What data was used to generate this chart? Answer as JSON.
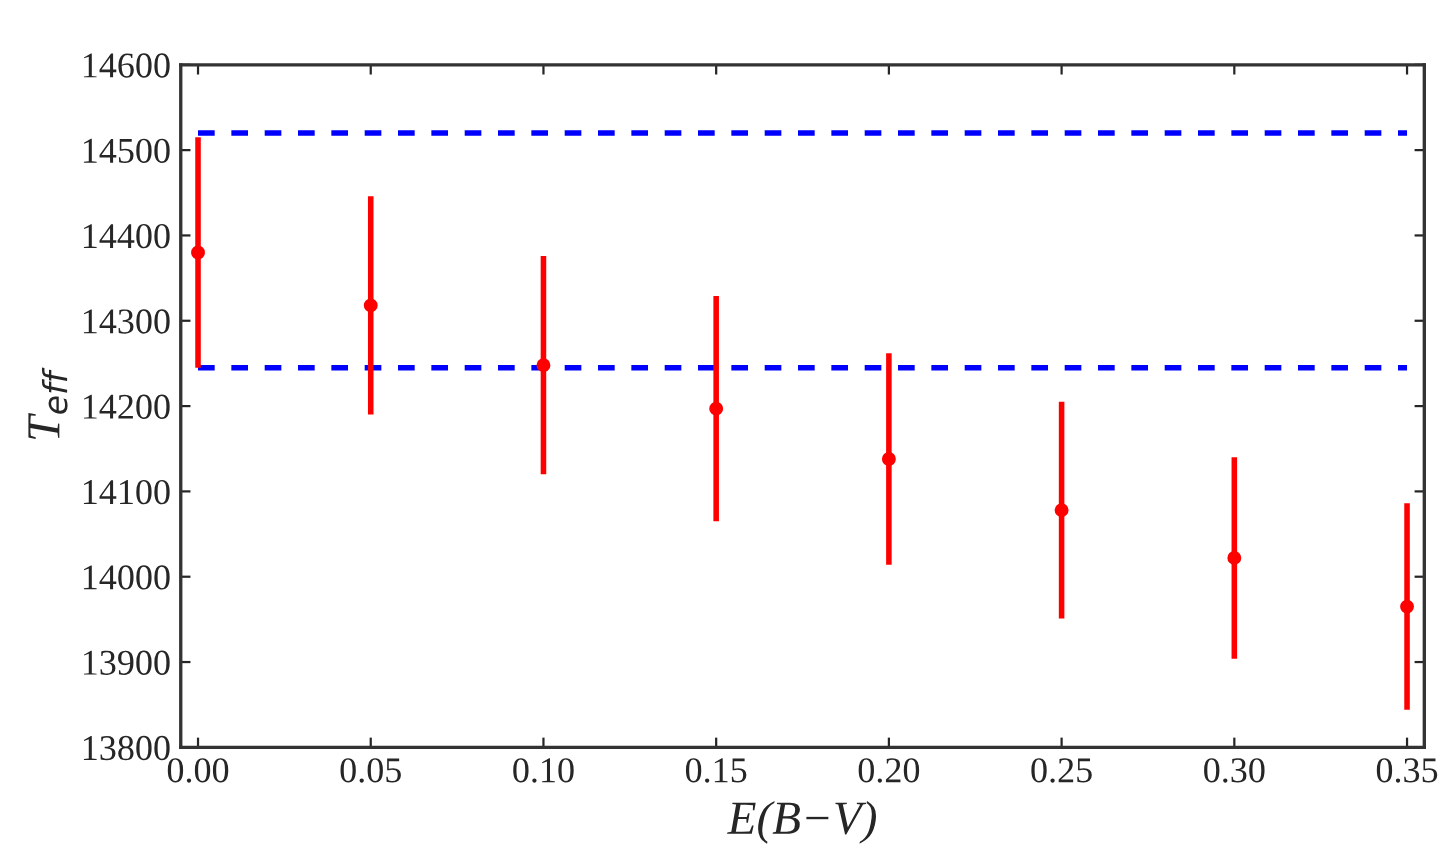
{
  "chart_data": {
    "type": "scatter",
    "xlabel": "E(B−V)",
    "ylabel": "T$_{eff}$",
    "x": [
      0.0,
      0.05,
      0.1,
      0.15,
      0.2,
      0.25,
      0.3,
      0.35
    ],
    "values": [
      14380,
      14318,
      14248,
      14197,
      14138,
      14078,
      14022,
      13965
    ],
    "errors": [
      135,
      128,
      128,
      132,
      124,
      127,
      118,
      121
    ],
    "color": "#ff0000",
    "marker": "circle",
    "xlim": [
      -0.005,
      0.355
    ],
    "xticks": [
      {
        "value": 0.0,
        "label": "0.00"
      },
      {
        "value": 0.05,
        "label": "0.05"
      },
      {
        "value": 0.1,
        "label": "0.10"
      },
      {
        "value": 0.15,
        "label": "0.15"
      },
      {
        "value": 0.2,
        "label": "0.20"
      },
      {
        "value": 0.25,
        "label": "0.25"
      },
      {
        "value": 0.3,
        "label": "0.30"
      },
      {
        "value": 0.35,
        "label": "0.35"
      }
    ],
    "ylim": [
      13800,
      14600
    ],
    "yticks": [
      13800,
      13900,
      14000,
      14100,
      14200,
      14300,
      14400,
      14500,
      14600
    ],
    "ref_lines": [
      {
        "axis": "y",
        "value": 14520,
        "color": "#0000ff",
        "line_style": "dashed"
      },
      {
        "axis": "y",
        "value": 14245,
        "color": "#0000ff",
        "line_style": "dashed"
      }
    ],
    "grid": false
  }
}
